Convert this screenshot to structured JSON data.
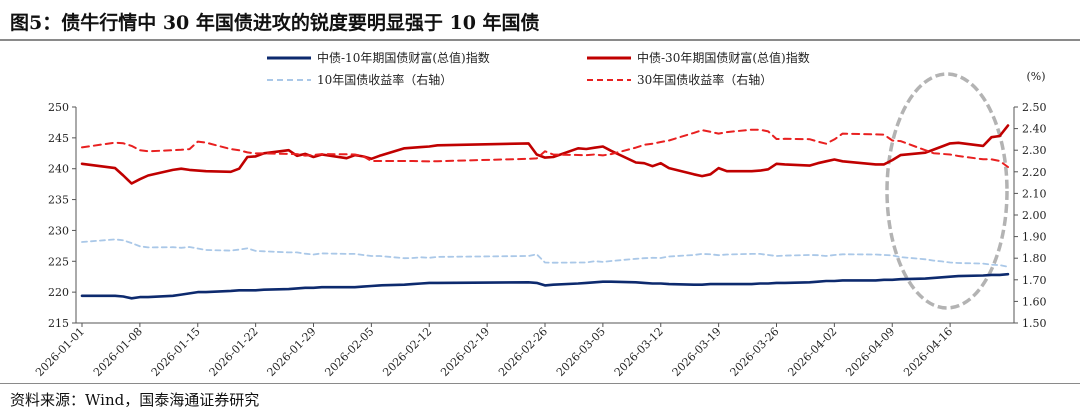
{
  "figure": {
    "title": "图5：债牛行情中 30 年国债进攻的锐度要明显强于 10 年国债",
    "source": "资料来源：Wind，国泰海通证券研究"
  },
  "chart_data": {
    "type": "line",
    "title": "图5：债牛行情中 30 年国债进攻的锐度要明显强于 10 年国债",
    "xlabel": "",
    "ylabel": "",
    "y2label": "(%)",
    "ylim": [
      215,
      250
    ],
    "y2lim": [
      1.5,
      2.5
    ],
    "yticks": [
      215,
      220,
      225,
      230,
      235,
      240,
      245,
      250
    ],
    "y2ticks": [
      "1.50",
      "1.60",
      "1.70",
      "1.80",
      "1.90",
      "2.00",
      "2.10",
      "2.20",
      "2.30",
      "2.40",
      "2.50"
    ],
    "x_start": "2026-01-01",
    "x_end": "2026-04-23",
    "xticks": [
      "2026-01-01",
      "2026-01-08",
      "2026-01-15",
      "2026-01-22",
      "2026-01-29",
      "2026-02-05",
      "2026-02-12",
      "2026-02-19",
      "2026-02-26",
      "2026-03-05",
      "2026-03-12",
      "2026-03-19",
      "2026-03-26",
      "2026-04-02",
      "2026-04-09",
      "2026-04-16"
    ],
    "grid": false,
    "legend_position": "top",
    "annotation": "dashed ellipse highlighting 2026-04-09 to 2026-04-23",
    "series": [
      {
        "name": "中债-10年期国债财富(总值)指数",
        "axis": "left",
        "style": "solid",
        "color": "#0d2a6e",
        "width": 2.6,
        "x": [
          "2026-01-01",
          "2026-01-05",
          "2026-01-06",
          "2026-01-07",
          "2026-01-08",
          "2026-01-09",
          "2026-01-12",
          "2026-01-13",
          "2026-01-14",
          "2026-01-15",
          "2026-01-16",
          "2026-01-19",
          "2026-01-20",
          "2026-01-21",
          "2026-01-22",
          "2026-01-23",
          "2026-01-26",
          "2026-01-27",
          "2026-01-28",
          "2026-01-29",
          "2026-01-30",
          "2026-02-02",
          "2026-02-03",
          "2026-02-04",
          "2026-02-05",
          "2026-02-06",
          "2026-02-09",
          "2026-02-10",
          "2026-02-11",
          "2026-02-12",
          "2026-02-13",
          "2026-02-24",
          "2026-02-25",
          "2026-02-26",
          "2026-02-27",
          "2026-03-02",
          "2026-03-03",
          "2026-03-04",
          "2026-03-05",
          "2026-03-06",
          "2026-03-09",
          "2026-03-10",
          "2026-03-11",
          "2026-03-12",
          "2026-03-13",
          "2026-03-16",
          "2026-03-17",
          "2026-03-18",
          "2026-03-19",
          "2026-03-20",
          "2026-03-23",
          "2026-03-24",
          "2026-03-25",
          "2026-03-26",
          "2026-03-27",
          "2026-03-30",
          "2026-03-31",
          "2026-04-01",
          "2026-04-02",
          "2026-04-03",
          "2026-04-07",
          "2026-04-08",
          "2026-04-09",
          "2026-04-10",
          "2026-04-13",
          "2026-04-14",
          "2026-04-15",
          "2026-04-16",
          "2026-04-17",
          "2026-04-20",
          "2026-04-21",
          "2026-04-22",
          "2026-04-23"
        ],
        "values": [
          219.4,
          219.4,
          219.3,
          219.0,
          219.2,
          219.2,
          219.4,
          219.6,
          219.8,
          220.0,
          220.0,
          220.2,
          220.3,
          220.3,
          220.3,
          220.4,
          220.5,
          220.6,
          220.7,
          220.7,
          220.8,
          220.8,
          220.8,
          220.9,
          221.0,
          221.1,
          221.2,
          221.3,
          221.4,
          221.5,
          221.5,
          221.6,
          221.5,
          221.1,
          221.2,
          221.4,
          221.5,
          221.6,
          221.7,
          221.7,
          221.6,
          221.5,
          221.4,
          221.4,
          221.3,
          221.2,
          221.2,
          221.3,
          221.3,
          221.3,
          221.3,
          221.4,
          221.4,
          221.5,
          221.5,
          221.6,
          221.7,
          221.8,
          221.8,
          221.9,
          221.9,
          222.0,
          222.0,
          222.1,
          222.2,
          222.3,
          222.4,
          222.5,
          222.6,
          222.7,
          222.8,
          222.8,
          222.9
        ]
      },
      {
        "name": "中债-30年期国债财富(总值)指数",
        "axis": "left",
        "style": "solid",
        "color": "#c00000",
        "width": 2.6,
        "x": [
          "2026-01-01",
          "2026-01-05",
          "2026-01-06",
          "2026-01-07",
          "2026-01-08",
          "2026-01-09",
          "2026-01-12",
          "2026-01-13",
          "2026-01-14",
          "2026-01-15",
          "2026-01-16",
          "2026-01-19",
          "2026-01-20",
          "2026-01-21",
          "2026-01-22",
          "2026-01-23",
          "2026-01-26",
          "2026-01-27",
          "2026-01-28",
          "2026-01-29",
          "2026-01-30",
          "2026-02-02",
          "2026-02-03",
          "2026-02-04",
          "2026-02-05",
          "2026-02-06",
          "2026-02-09",
          "2026-02-10",
          "2026-02-11",
          "2026-02-12",
          "2026-02-13",
          "2026-02-24",
          "2026-02-25",
          "2026-02-26",
          "2026-02-27",
          "2026-03-02",
          "2026-03-03",
          "2026-03-04",
          "2026-03-05",
          "2026-03-06",
          "2026-03-09",
          "2026-03-10",
          "2026-03-11",
          "2026-03-12",
          "2026-03-13",
          "2026-03-16",
          "2026-03-17",
          "2026-03-18",
          "2026-03-19",
          "2026-03-20",
          "2026-03-23",
          "2026-03-24",
          "2026-03-25",
          "2026-03-26",
          "2026-03-27",
          "2026-03-30",
          "2026-03-31",
          "2026-04-01",
          "2026-04-02",
          "2026-04-03",
          "2026-04-07",
          "2026-04-08",
          "2026-04-09",
          "2026-04-10",
          "2026-04-13",
          "2026-04-14",
          "2026-04-15",
          "2026-04-16",
          "2026-04-17",
          "2026-04-20",
          "2026-04-21",
          "2026-04-22",
          "2026-04-23"
        ],
        "values": [
          240.8,
          240.1,
          238.9,
          237.6,
          238.3,
          238.9,
          239.8,
          240.0,
          239.8,
          239.7,
          239.6,
          239.5,
          240.0,
          241.9,
          242.0,
          242.5,
          243.0,
          242.1,
          242.4,
          241.9,
          242.3,
          241.7,
          242.2,
          242.0,
          241.6,
          242.1,
          243.3,
          243.4,
          243.5,
          243.6,
          243.8,
          244.1,
          242.3,
          241.8,
          241.9,
          243.3,
          243.2,
          243.4,
          243.6,
          242.9,
          241.0,
          240.9,
          240.4,
          240.9,
          240.1,
          239.1,
          238.8,
          239.1,
          240.1,
          239.6,
          239.6,
          239.7,
          239.9,
          240.8,
          240.7,
          240.5,
          240.9,
          241.2,
          241.5,
          241.2,
          240.7,
          240.7,
          241.4,
          242.2,
          242.6,
          243.1,
          243.6,
          244.1,
          244.2,
          243.7,
          245.1,
          245.3,
          247.0
        ]
      },
      {
        "name": "10年国债收益率（右轴）",
        "axis": "right",
        "style": "dashed",
        "color": "#aac8e8",
        "width": 1.8,
        "x": [
          "2026-01-01",
          "2026-01-05",
          "2026-01-06",
          "2026-01-07",
          "2026-01-08",
          "2026-01-09",
          "2026-01-12",
          "2026-01-13",
          "2026-01-14",
          "2026-01-15",
          "2026-01-16",
          "2026-01-19",
          "2026-01-20",
          "2026-01-21",
          "2026-01-22",
          "2026-01-23",
          "2026-01-26",
          "2026-01-27",
          "2026-01-28",
          "2026-01-29",
          "2026-01-30",
          "2026-02-02",
          "2026-02-03",
          "2026-02-04",
          "2026-02-05",
          "2026-02-06",
          "2026-02-09",
          "2026-02-10",
          "2026-02-11",
          "2026-02-12",
          "2026-02-13",
          "2026-02-24",
          "2026-02-25",
          "2026-02-26",
          "2026-02-27",
          "2026-03-02",
          "2026-03-03",
          "2026-03-04",
          "2026-03-05",
          "2026-03-06",
          "2026-03-09",
          "2026-03-10",
          "2026-03-11",
          "2026-03-12",
          "2026-03-13",
          "2026-03-16",
          "2026-03-17",
          "2026-03-18",
          "2026-03-19",
          "2026-03-20",
          "2026-03-23",
          "2026-03-24",
          "2026-03-25",
          "2026-03-26",
          "2026-03-27",
          "2026-03-30",
          "2026-03-31",
          "2026-04-01",
          "2026-04-02",
          "2026-04-03",
          "2026-04-07",
          "2026-04-08",
          "2026-04-09",
          "2026-04-10",
          "2026-04-13",
          "2026-04-14",
          "2026-04-15",
          "2026-04-16",
          "2026-04-17",
          "2026-04-20",
          "2026-04-21",
          "2026-04-22",
          "2026-04-23"
        ],
        "values": [
          1.875,
          1.887,
          1.883,
          1.87,
          1.855,
          1.85,
          1.851,
          1.848,
          1.852,
          1.845,
          1.838,
          1.835,
          1.84,
          1.846,
          1.834,
          1.832,
          1.827,
          1.827,
          1.821,
          1.817,
          1.822,
          1.82,
          1.82,
          1.815,
          1.81,
          1.81,
          1.8,
          1.801,
          1.804,
          1.802,
          1.806,
          1.81,
          1.818,
          1.78,
          1.779,
          1.78,
          1.78,
          1.786,
          1.783,
          1.787,
          1.797,
          1.8,
          1.802,
          1.801,
          1.808,
          1.815,
          1.82,
          1.818,
          1.814,
          1.817,
          1.82,
          1.82,
          1.815,
          1.81,
          1.812,
          1.815,
          1.814,
          1.81,
          1.815,
          1.818,
          1.817,
          1.815,
          1.813,
          1.805,
          1.795,
          1.789,
          1.785,
          1.78,
          1.778,
          1.775,
          1.77,
          1.768,
          1.76
        ]
      },
      {
        "name": "30年国债收益率（右轴）",
        "axis": "right",
        "style": "dashed",
        "color": "#e82020",
        "width": 2.0,
        "x": [
          "2026-01-01",
          "2026-01-05",
          "2026-01-06",
          "2026-01-07",
          "2026-01-08",
          "2026-01-09",
          "2026-01-12",
          "2026-01-13",
          "2026-01-14",
          "2026-01-15",
          "2026-01-16",
          "2026-01-19",
          "2026-01-20",
          "2026-01-21",
          "2026-01-22",
          "2026-01-23",
          "2026-01-26",
          "2026-01-27",
          "2026-01-28",
          "2026-01-29",
          "2026-01-30",
          "2026-02-02",
          "2026-02-03",
          "2026-02-04",
          "2026-02-05",
          "2026-02-06",
          "2026-02-09",
          "2026-02-10",
          "2026-02-11",
          "2026-02-12",
          "2026-02-13",
          "2026-02-24",
          "2026-02-25",
          "2026-02-26",
          "2026-02-27",
          "2026-03-02",
          "2026-03-03",
          "2026-03-04",
          "2026-03-05",
          "2026-03-06",
          "2026-03-09",
          "2026-03-10",
          "2026-03-11",
          "2026-03-12",
          "2026-03-13",
          "2026-03-16",
          "2026-03-17",
          "2026-03-18",
          "2026-03-19",
          "2026-03-20",
          "2026-03-23",
          "2026-03-24",
          "2026-03-25",
          "2026-03-26",
          "2026-03-27",
          "2026-03-30",
          "2026-03-31",
          "2026-04-01",
          "2026-04-02",
          "2026-04-03",
          "2026-04-07",
          "2026-04-08",
          "2026-04-09",
          "2026-04-10",
          "2026-04-13",
          "2026-04-14",
          "2026-04-15",
          "2026-04-16",
          "2026-04-17",
          "2026-04-20",
          "2026-04-21",
          "2026-04-22",
          "2026-04-23"
        ],
        "values": [
          2.313,
          2.335,
          2.332,
          2.32,
          2.3,
          2.295,
          2.3,
          2.302,
          2.305,
          2.34,
          2.335,
          2.305,
          2.3,
          2.29,
          2.285,
          2.285,
          2.283,
          2.282,
          2.275,
          2.278,
          2.282,
          2.281,
          2.28,
          2.272,
          2.25,
          2.25,
          2.25,
          2.25,
          2.249,
          2.248,
          2.249,
          2.26,
          2.262,
          2.295,
          2.28,
          2.278,
          2.277,
          2.28,
          2.276,
          2.282,
          2.312,
          2.325,
          2.33,
          2.338,
          2.345,
          2.38,
          2.393,
          2.385,
          2.377,
          2.384,
          2.395,
          2.395,
          2.387,
          2.352,
          2.353,
          2.351,
          2.34,
          2.33,
          2.35,
          2.377,
          2.373,
          2.372,
          2.345,
          2.342,
          2.3,
          2.286,
          2.283,
          2.28,
          2.273,
          2.258,
          2.258,
          2.25,
          2.222
        ]
      }
    ]
  }
}
